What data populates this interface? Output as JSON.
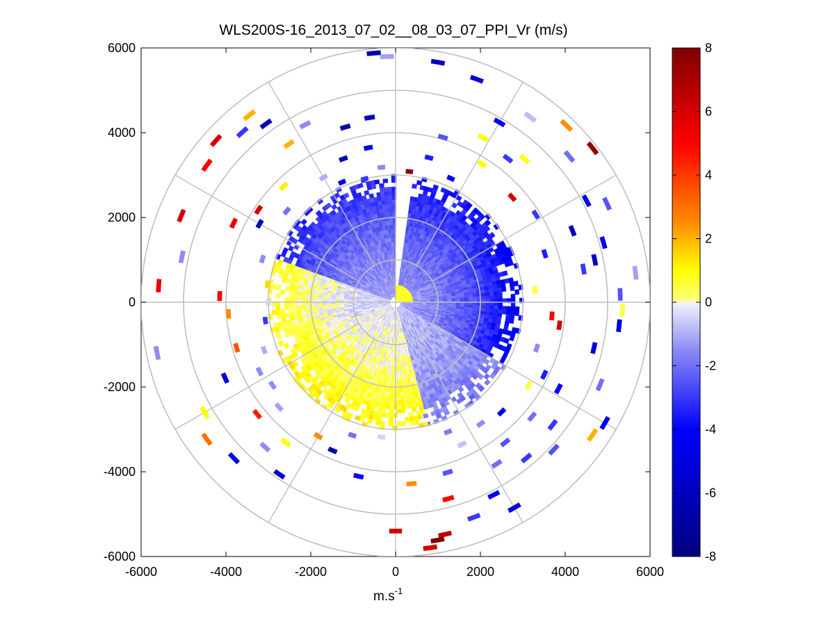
{
  "chart_data": {
    "type": "heatmap",
    "subtype": "polar-ppi",
    "title": "WLS200S-16_2013_07_02__08_03_07_PPI_Vr (m/s)",
    "xlabel": "m.s",
    "xlabel_superscript": "-1",
    "ylabel": "",
    "xlim": [
      -6000,
      6000
    ],
    "ylim": [
      -6000,
      6000
    ],
    "x_ticks": [
      "-6000",
      "-4000",
      "-2000",
      "0",
      "2000",
      "4000",
      "6000"
    ],
    "y_ticks": [
      "6000",
      "4000",
      "2000",
      "0",
      "-2000",
      "-4000",
      "-6000"
    ],
    "x_tick_values": [
      -6000,
      -4000,
      -2000,
      0,
      2000,
      4000,
      6000
    ],
    "y_tick_values": [
      6000,
      4000,
      2000,
      0,
      -2000,
      -4000,
      -6000
    ],
    "range_rings_m": [
      1000,
      2000,
      3000,
      4000,
      5000,
      6000
    ],
    "spoke_angles_deg": [
      0,
      30,
      60,
      90,
      120,
      150,
      180,
      210,
      240,
      270,
      300,
      330
    ],
    "colorbar": {
      "label": "Vr (m/s)",
      "range": [
        -8,
        8
      ],
      "ticks": [
        "8",
        "6",
        "4",
        "2",
        "0",
        "-2",
        "-4",
        "-6",
        "-8"
      ],
      "tick_values": [
        8,
        6,
        4,
        2,
        0,
        -2,
        -4,
        -6,
        -8
      ],
      "stops": [
        {
          "value": -8,
          "color": "#00007f"
        },
        {
          "value": -4,
          "color": "#0000ff"
        },
        {
          "value": -1.5,
          "color": "#8c8cf5"
        },
        {
          "value": 0,
          "color": "#f4f4ff"
        },
        {
          "value": 0.05,
          "color": "#ffff80"
        },
        {
          "value": 1,
          "color": "#ffff00"
        },
        {
          "value": 2.5,
          "color": "#ff8c00"
        },
        {
          "value": 5,
          "color": "#ff0000"
        },
        {
          "value": 8,
          "color": "#7f0000"
        }
      ]
    },
    "inner_field": {
      "description": "dense near-range velocity field",
      "range_m": [
        0,
        3000
      ],
      "missing_sector_deg": [
        0,
        8
      ],
      "segments": [
        {
          "az_from": 0,
          "az_to": 60,
          "vr_near": -1.5,
          "vr_far": -4.0
        },
        {
          "az_from": 60,
          "az_to": 120,
          "vr_near": -1.2,
          "vr_far": -4.5
        },
        {
          "az_from": 120,
          "az_to": 165,
          "vr_near": -0.8,
          "vr_far": -2.0
        },
        {
          "az_from": 165,
          "az_to": 250,
          "vr_near": -0.3,
          "vr_far": 1.2
        },
        {
          "az_from": 250,
          "az_to": 290,
          "vr_near": -0.6,
          "vr_far": 0.9
        },
        {
          "az_from": 290,
          "az_to": 360,
          "vr_near": -1.3,
          "vr_far": -3.5
        }
      ],
      "center_patch": {
        "az_from": 0,
        "az_to": 90,
        "range_m": [
          0,
          350
        ],
        "vr": 0.6
      }
    },
    "sparse_points": [
      {
        "az": 6,
        "r": 3100,
        "vr": 7.5
      },
      {
        "az": 10,
        "r": 5750,
        "vr": -6.0
      },
      {
        "az": 13,
        "r": 3500,
        "vr": -3.5
      },
      {
        "az": 16,
        "r": 4050,
        "vr": -2.5
      },
      {
        "az": 20,
        "r": 5600,
        "vr": -5.5
      },
      {
        "az": 24,
        "r": 3200,
        "vr": -4.0
      },
      {
        "az": 28,
        "r": 4400,
        "vr": 1.0
      },
      {
        "az": 30,
        "r": 4900,
        "vr": -4.0
      },
      {
        "az": 32,
        "r": 3850,
        "vr": 1.0
      },
      {
        "az": 36,
        "r": 5400,
        "vr": -0.8
      },
      {
        "az": 38,
        "r": 4300,
        "vr": -3.0
      },
      {
        "az": 42,
        "r": 4550,
        "vr": 1.0
      },
      {
        "az": 44,
        "r": 5800,
        "vr": 2.5
      },
      {
        "az": 48,
        "r": 3700,
        "vr": 6.0
      },
      {
        "az": 50,
        "r": 5350,
        "vr": -2.0
      },
      {
        "az": 52,
        "r": 5900,
        "vr": 7.5
      },
      {
        "az": 58,
        "r": 3900,
        "vr": -3.0
      },
      {
        "az": 62,
        "r": 5100,
        "vr": -5.0
      },
      {
        "az": 65,
        "r": 5500,
        "vr": -2.5
      },
      {
        "az": 68,
        "r": 4500,
        "vr": -6.5
      },
      {
        "az": 72,
        "r": 3700,
        "vr": -3.5
      },
      {
        "az": 74,
        "r": 5100,
        "vr": -4.5
      },
      {
        "az": 78,
        "r": 4800,
        "vr": -5.5
      },
      {
        "az": 80,
        "r": 4500,
        "vr": -3.0
      },
      {
        "az": 83,
        "r": 5700,
        "vr": -1.2
      },
      {
        "az": 85,
        "r": 3300,
        "vr": 0.6
      },
      {
        "az": 88,
        "r": 5300,
        "vr": -2.5
      },
      {
        "az": 92,
        "r": 5350,
        "vr": 0.5
      },
      {
        "az": 95,
        "r": 3700,
        "vr": 5.0
      },
      {
        "az": 96,
        "r": 5300,
        "vr": -5.0
      },
      {
        "az": 98,
        "r": 3900,
        "vr": 6.0
      },
      {
        "az": 103,
        "r": 4800,
        "vr": -5.0
      },
      {
        "az": 108,
        "r": 3500,
        "vr": -1.5
      },
      {
        "az": 112,
        "r": 5200,
        "vr": -2.0
      },
      {
        "az": 116,
        "r": 3900,
        "vr": -3.5
      },
      {
        "az": 118,
        "r": 4350,
        "vr": -4.0
      },
      {
        "az": 120,
        "r": 5700,
        "vr": -4.5
      },
      {
        "az": 122,
        "r": 3700,
        "vr": 0.5
      },
      {
        "az": 124,
        "r": 5600,
        "vr": 2.0
      },
      {
        "az": 128,
        "r": 4700,
        "vr": -3.0
      },
      {
        "az": 130,
        "r": 4200,
        "vr": -2.0
      },
      {
        "az": 133,
        "r": 5100,
        "vr": -2.5
      },
      {
        "az": 136,
        "r": 3600,
        "vr": -4.5
      },
      {
        "az": 140,
        "r": 4800,
        "vr": -3.0
      },
      {
        "az": 142,
        "r": 4200,
        "vr": -2.5
      },
      {
        "az": 145,
        "r": 3500,
        "vr": -1.5
      },
      {
        "az": 148,
        "r": 4500,
        "vr": -2.0
      },
      {
        "az": 150,
        "r": 5600,
        "vr": -5.0
      },
      {
        "az": 153,
        "r": 5100,
        "vr": -4.5
      },
      {
        "az": 155,
        "r": 3700,
        "vr": -0.7
      },
      {
        "az": 158,
        "r": 3300,
        "vr": -1.8
      },
      {
        "az": 160,
        "r": 5400,
        "vr": -3.0
      },
      {
        "az": 163,
        "r": 4200,
        "vr": -2.5
      },
      {
        "az": 165,
        "r": 4800,
        "vr": 5.0
      },
      {
        "az": 168,
        "r": 5600,
        "vr": 6.5
      },
      {
        "az": 170,
        "r": 5700,
        "vr": 8.0
      },
      {
        "az": 172,
        "r": 5850,
        "vr": 6.0
      },
      {
        "az": 175,
        "r": 4300,
        "vr": 2.5
      },
      {
        "az": 180,
        "r": 5400,
        "vr": 6.0
      },
      {
        "az": 186,
        "r": 3200,
        "vr": -0.5
      },
      {
        "az": 192,
        "r": 4200,
        "vr": -4.0
      },
      {
        "az": 198,
        "r": 3300,
        "vr": -2.0
      },
      {
        "az": 203,
        "r": 3800,
        "vr": -6.5
      },
      {
        "az": 206,
        "r": 2800,
        "vr": 1.5
      },
      {
        "az": 210,
        "r": 3650,
        "vr": 2.5
      },
      {
        "az": 214,
        "r": 4900,
        "vr": -6.0
      },
      {
        "az": 218,
        "r": 4200,
        "vr": 1.0
      },
      {
        "az": 222,
        "r": 4600,
        "vr": -1.5
      },
      {
        "az": 226,
        "r": 5300,
        "vr": -4.5
      },
      {
        "az": 228,
        "r": 3700,
        "vr": -1.2
      },
      {
        "az": 231,
        "r": 4200,
        "vr": 4.5
      },
      {
        "az": 234,
        "r": 5500,
        "vr": 3.0
      },
      {
        "az": 236,
        "r": 3500,
        "vr": -1.5
      },
      {
        "az": 240,
        "r": 5200,
        "vr": 1.0
      },
      {
        "az": 243,
        "r": 3600,
        "vr": -1.5
      },
      {
        "az": 246,
        "r": 4400,
        "vr": -5.0
      },
      {
        "az": 250,
        "r": 3300,
        "vr": -1.0
      },
      {
        "az": 254,
        "r": 3900,
        "vr": 3.5
      },
      {
        "az": 258,
        "r": 5750,
        "vr": -1.5
      },
      {
        "az": 262,
        "r": 3100,
        "vr": -3.0
      },
      {
        "az": 266,
        "r": 3950,
        "vr": 2.5
      },
      {
        "az": 270,
        "r": 3000,
        "vr": -0.5
      },
      {
        "az": 272,
        "r": 4150,
        "vr": 5.0
      },
      {
        "az": 274,
        "r": 5600,
        "vr": 5.5
      },
      {
        "az": 278,
        "r": 3050,
        "vr": 1.5
      },
      {
        "az": 282,
        "r": 5150,
        "vr": -1.5
      },
      {
        "az": 288,
        "r": 3300,
        "vr": -1.5
      },
      {
        "az": 292,
        "r": 5450,
        "vr": 6.0
      },
      {
        "az": 296,
        "r": 4250,
        "vr": 5.5
      },
      {
        "az": 300,
        "r": 3700,
        "vr": -6.0
      },
      {
        "az": 304,
        "r": 3900,
        "vr": 6.0
      },
      {
        "az": 306,
        "r": 5500,
        "vr": 5.0
      },
      {
        "az": 310,
        "r": 3350,
        "vr": -2.0
      },
      {
        "az": 312,
        "r": 5700,
        "vr": 6.0
      },
      {
        "az": 316,
        "r": 3800,
        "vr": 1.2
      },
      {
        "az": 318,
        "r": 5400,
        "vr": -3.0
      },
      {
        "az": 322,
        "r": 5600,
        "vr": 2.0
      },
      {
        "az": 324,
        "r": 5200,
        "vr": -6.0
      },
      {
        "az": 326,
        "r": 4500,
        "vr": 2.0
      },
      {
        "az": 330,
        "r": 3400,
        "vr": -1.0
      },
      {
        "az": 333,
        "r": 4700,
        "vr": -1.5
      },
      {
        "az": 336,
        "r": 3100,
        "vr": -5.0
      },
      {
        "az": 340,
        "r": 3600,
        "vr": -6.0
      },
      {
        "az": 344,
        "r": 4300,
        "vr": -7.0
      },
      {
        "az": 346,
        "r": 3000,
        "vr": -3.0
      },
      {
        "az": 350,
        "r": 3700,
        "vr": -5.0
      },
      {
        "az": 352,
        "r": 4400,
        "vr": -6.0
      },
      {
        "az": 354,
        "r": 3200,
        "vr": -1.5
      },
      {
        "az": 355,
        "r": 5900,
        "vr": -6.5
      },
      {
        "az": 358,
        "r": 5800,
        "vr": -1.2
      }
    ]
  }
}
